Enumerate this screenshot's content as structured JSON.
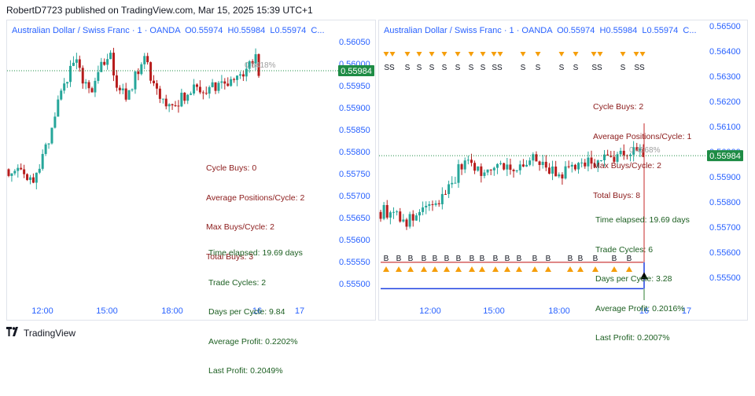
{
  "header": {
    "text": "RobertD7723 published on TradingView.com, Mar 15, 2025 15:39 UTC+1"
  },
  "footer": {
    "logo_text": "TradingView"
  },
  "colors": {
    "up": "#26a69a",
    "down": "#b71c1c",
    "accent": "#2962ff",
    "price_tag": "#1e8c45",
    "buy_line": "#c62828",
    "base_line": "#1e40e0",
    "signal": "#f59e0b"
  },
  "chart_data": [
    {
      "type": "candlestick",
      "title": {
        "symbol": "Australian Dollar / Swiss Franc · 1 · OANDA",
        "open": "O0.55974",
        "high": "H0.55984",
        "low": "L0.55974",
        "close": "C..."
      },
      "x_tick_labels": [
        "12:00",
        "15:00",
        "18:00",
        "16",
        "17"
      ],
      "y_tick_labels": [
        "0.56050",
        "0.56000",
        "0.55950",
        "0.55900",
        "0.55850",
        "0.55800",
        "0.55750",
        "0.55700",
        "0.55650",
        "0.55600",
        "0.55550",
        "0.55500"
      ],
      "ylim": [
        0.55475,
        0.56085
      ],
      "last_price": "0.55984",
      "annotation": "0.6418%",
      "stats_red": [
        "Cycle Buys: 0",
        "Average Positions/Cycle: 2",
        "Max Buys/Cycle: 2",
        "Total Buys: 3"
      ],
      "stats_green": [
        "Time elapsed: 19.69 days",
        "Trade Cycles: 2",
        "Days per Cycle: 9.84",
        "Average Profit: 0.2202%",
        "Last Profit: 0.2049%"
      ],
      "price_path": [
        [
          0,
          0.5576
        ],
        [
          4,
          0.55745
        ],
        [
          7,
          0.5573
        ],
        [
          8,
          0.5574
        ],
        [
          11,
          0.5579
        ],
        [
          14,
          0.5585
        ],
        [
          17,
          0.5593
        ],
        [
          20,
          0.5599
        ],
        [
          22,
          0.5601
        ],
        [
          24,
          0.5596
        ],
        [
          27,
          0.5593
        ],
        [
          30,
          0.5599
        ],
        [
          33,
          0.5601
        ],
        [
          35,
          0.5596
        ],
        [
          38,
          0.5593
        ],
        [
          41,
          0.5597
        ],
        [
          44,
          0.56015
        ],
        [
          46,
          0.5597
        ],
        [
          49,
          0.5592
        ],
        [
          52,
          0.559
        ],
        [
          54,
          0.5589
        ],
        [
          56,
          0.5592
        ],
        [
          60,
          0.5594
        ],
        [
          64,
          0.5594
        ],
        [
          68,
          0.55955
        ],
        [
          72,
          0.5596
        ],
        [
          76,
          0.55975
        ],
        [
          78,
          0.56
        ],
        [
          80,
          0.5601
        ],
        [
          81,
          0.55984
        ]
      ]
    },
    {
      "type": "candlestick",
      "title": {
        "symbol": "Australian Dollar / Swiss Franc · 1 · OANDA",
        "open": "O0.55974",
        "high": "H0.55984",
        "low": "L0.55974",
        "close": "C..."
      },
      "x_tick_labels": [
        "12:00",
        "15:00",
        "18:00",
        "16",
        "17"
      ],
      "y_tick_labels": [
        "0.56500",
        "0.56400",
        "0.56300",
        "0.56200",
        "0.56100",
        "0.56000",
        "0.55900",
        "0.55800",
        "0.55700",
        "0.55600",
        "0.55500"
      ],
      "ylim": [
        0.55405,
        0.56515
      ],
      "last_price": "0.55984",
      "annotation": "0.4568%",
      "buy_level": 0.5556,
      "base_level": 0.55455,
      "stats_red": [
        "Cycle Buys: 2",
        "Average Positions/Cycle: 1",
        "Max Buys/Cycle: 2",
        "Total Buys: 8"
      ],
      "stats_green": [
        "Time elapsed: 19.69 days",
        "Trade Cycles: 6",
        "Days per Cycle: 3.28",
        "Average Profit: 0.2016%",
        "Last Profit: 0.2007%"
      ],
      "sell_marker_labels": [
        "SS",
        "S",
        "S",
        "S",
        "S",
        "S",
        "S",
        "S",
        "SS",
        "S",
        "S",
        "S",
        "S",
        "SS",
        "S",
        "SS"
      ],
      "buy_marker_labels": [
        "B",
        "B",
        "B",
        "B",
        "B",
        "B",
        "B",
        "B",
        "B",
        "B",
        "B",
        "B",
        "B",
        "B",
        "B",
        "B",
        "B",
        "B",
        "B"
      ],
      "price_path": [
        [
          0,
          0.5576
        ],
        [
          4,
          0.55765
        ],
        [
          8,
          0.5572
        ],
        [
          12,
          0.5575
        ],
        [
          15,
          0.5578
        ],
        [
          18,
          0.558
        ],
        [
          22,
          0.5588
        ],
        [
          25,
          0.5595
        ],
        [
          28,
          0.5596
        ],
        [
          31,
          0.5591
        ],
        [
          34,
          0.5593
        ],
        [
          37,
          0.5596
        ],
        [
          40,
          0.5594
        ],
        [
          43,
          0.5593
        ],
        [
          46,
          0.5596
        ],
        [
          49,
          0.5597
        ],
        [
          52,
          0.5592
        ],
        [
          55,
          0.559
        ],
        [
          58,
          0.5593
        ],
        [
          62,
          0.5595
        ],
        [
          66,
          0.5596
        ],
        [
          70,
          0.55975
        ],
        [
          74,
          0.5599
        ],
        [
          77,
          0.56
        ],
        [
          79,
          0.5601
        ],
        [
          81,
          0.55984
        ]
      ]
    }
  ]
}
